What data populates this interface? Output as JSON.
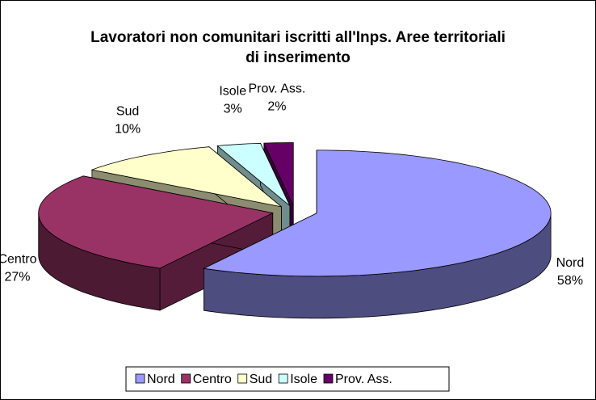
{
  "chart_data": {
    "type": "pie3d",
    "title": "Lavoratori non comunitari iscritti all'Inps. Aree territoriali di inserimento",
    "categories": [
      "Nord",
      "Centro",
      "Sud",
      "Isole",
      "Prov. Ass."
    ],
    "values": [
      58,
      27,
      10,
      3,
      2
    ],
    "value_labels": [
      "58%",
      "27%",
      "10%",
      "3%",
      "2%"
    ],
    "colors": [
      "#9999ff",
      "#993366",
      "#ffffcc",
      "#ccffff",
      "#660066"
    ],
    "legend": "bottom"
  }
}
